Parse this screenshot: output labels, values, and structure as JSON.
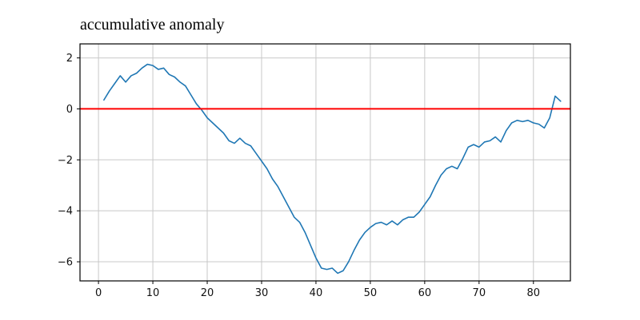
{
  "figure": {
    "background": "#ffffff"
  },
  "chart_data": {
    "type": "line",
    "title": "accumulative anomaly",
    "title_loc": "left",
    "xlabel": "",
    "ylabel": "",
    "xlim": [
      -3.4,
      86.8
    ],
    "ylim": [
      -6.75,
      2.55
    ],
    "xticks": [
      0,
      10,
      20,
      30,
      40,
      50,
      60,
      70,
      80
    ],
    "yticks": [
      2,
      0,
      -2,
      -4,
      -6
    ],
    "grid": true,
    "grid_color": "#c8c8c8",
    "spine_color": "#000000",
    "legend": "none",
    "series": [
      {
        "name": "accumulative anomaly",
        "type": "line",
        "color": "#1f77b4",
        "linewidth": 1.6,
        "x": [
          1,
          2,
          3,
          4,
          5,
          6,
          7,
          8,
          9,
          10,
          11,
          12,
          13,
          14,
          15,
          16,
          17,
          18,
          19,
          20,
          21,
          22,
          23,
          24,
          25,
          26,
          27,
          28,
          29,
          30,
          31,
          32,
          33,
          34,
          35,
          36,
          37,
          38,
          39,
          40,
          41,
          42,
          43,
          44,
          45,
          46,
          47,
          48,
          49,
          50,
          51,
          52,
          53,
          54,
          55,
          56,
          57,
          58,
          59,
          60,
          61,
          62,
          63,
          64,
          65,
          66,
          67,
          68,
          69,
          70,
          71,
          72,
          73,
          74,
          75,
          76,
          77,
          78,
          79,
          80,
          81,
          82,
          83,
          84,
          85
        ],
        "y": [
          0.35,
          0.7,
          1.0,
          1.3,
          1.05,
          1.3,
          1.4,
          1.6,
          1.75,
          1.7,
          1.55,
          1.6,
          1.35,
          1.25,
          1.05,
          0.9,
          0.55,
          0.2,
          -0.05,
          -0.35,
          -0.55,
          -0.75,
          -0.95,
          -1.25,
          -1.35,
          -1.15,
          -1.35,
          -1.45,
          -1.75,
          -2.05,
          -2.35,
          -2.75,
          -3.05,
          -3.45,
          -3.85,
          -4.25,
          -4.45,
          -4.85,
          -5.35,
          -5.85,
          -6.25,
          -6.3,
          -6.25,
          -6.45,
          -6.35,
          -6.0,
          -5.55,
          -5.15,
          -4.85,
          -4.65,
          -4.5,
          -4.45,
          -4.55,
          -4.4,
          -4.55,
          -4.35,
          -4.25,
          -4.25,
          -4.05,
          -3.75,
          -3.45,
          -3.0,
          -2.6,
          -2.35,
          -2.25,
          -2.35,
          -1.95,
          -1.5,
          -1.4,
          -1.5,
          -1.3,
          -1.25,
          -1.1,
          -1.3,
          -0.85,
          -0.55,
          -0.45,
          -0.5,
          -0.45,
          -0.55,
          -0.6,
          -0.75,
          -0.35,
          0.5,
          0.3
        ]
      },
      {
        "name": "zero-reference-line",
        "type": "hline",
        "color": "#ff0000",
        "linewidth": 2,
        "y": 0
      }
    ]
  }
}
